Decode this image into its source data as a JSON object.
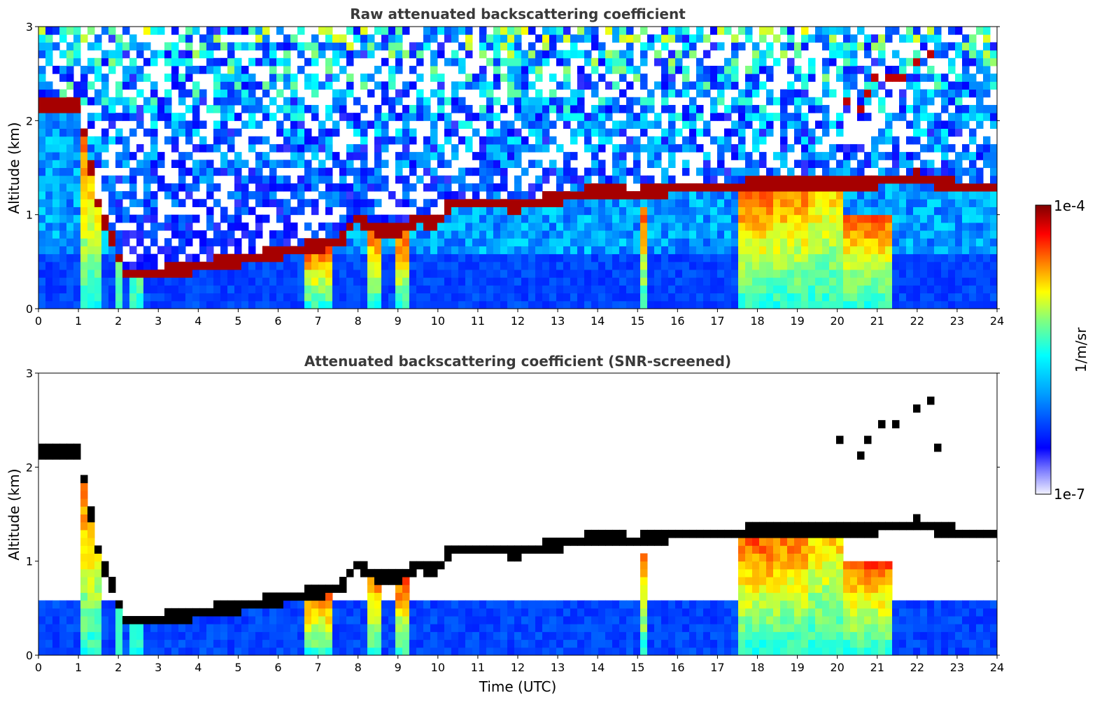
{
  "chart_data": [
    {
      "type": "heatmap",
      "title": "Raw attenuated backscattering coefficient",
      "xlabel": "",
      "ylabel": "Altitude (km)",
      "xlim": [
        0,
        24
      ],
      "ylim": [
        0,
        3
      ],
      "xticks": [
        "0",
        "1",
        "2",
        "3",
        "4",
        "5",
        "6",
        "7",
        "8",
        "9",
        "10",
        "11",
        "12",
        "13",
        "14",
        "15",
        "16",
        "17",
        "18",
        "19",
        "20",
        "21",
        "22",
        "23",
        "24"
      ],
      "yticks": [
        "0",
        "1",
        "2",
        "3"
      ],
      "features": {
        "cloud_base_km": [
          [
            0,
            2.15
          ],
          [
            1,
            2.15
          ],
          [
            1.5,
            1.1
          ],
          [
            2.2,
            0.35
          ],
          [
            3,
            0.38
          ],
          [
            4,
            0.45
          ],
          [
            5,
            0.52
          ],
          [
            6,
            0.6
          ],
          [
            7,
            0.68
          ],
          [
            7.5,
            0.7
          ],
          [
            8,
            0.98
          ],
          [
            8.5,
            0.82
          ],
          [
            9,
            0.82
          ],
          [
            9.5,
            0.95
          ],
          [
            10,
            0.92
          ],
          [
            10.3,
            1.12
          ],
          [
            11,
            1.12
          ],
          [
            12,
            1.1
          ],
          [
            13,
            1.18
          ],
          [
            14,
            1.25
          ],
          [
            15,
            1.22
          ],
          [
            16,
            1.28
          ],
          [
            17,
            1.3
          ],
          [
            18,
            1.32
          ],
          [
            19,
            1.35
          ],
          [
            20,
            1.35
          ],
          [
            21,
            1.35
          ],
          [
            22,
            1.4
          ],
          [
            23,
            1.3
          ],
          [
            24,
            1.28
          ]
        ],
        "high_cloud_km": [
          [
            20,
            2.35
          ],
          [
            20.5,
            2.05
          ],
          [
            21,
            2.5
          ],
          [
            21.5,
            2.4
          ],
          [
            22,
            2.65
          ],
          [
            22.3,
            2.8
          ],
          [
            22.5,
            2.2
          ]
        ],
        "screened_out_noise": false
      }
    },
    {
      "type": "heatmap",
      "title": "Attenuated backscattering coefficient (SNR-screened)",
      "xlabel": "Time (UTC)",
      "ylabel": "Altitude (km)",
      "xlim": [
        0,
        24
      ],
      "ylim": [
        0,
        3
      ],
      "xticks": [
        "0",
        "1",
        "2",
        "3",
        "4",
        "5",
        "6",
        "7",
        "8",
        "9",
        "10",
        "11",
        "12",
        "13",
        "14",
        "15",
        "16",
        "17",
        "18",
        "19",
        "20",
        "21",
        "22",
        "23",
        "24"
      ],
      "yticks": [
        "0",
        "1",
        "2",
        "3"
      ],
      "features": {
        "cloud_base_km": [
          [
            0,
            2.15
          ],
          [
            1,
            2.15
          ],
          [
            1.5,
            1.1
          ],
          [
            2.2,
            0.35
          ],
          [
            3,
            0.38
          ],
          [
            4,
            0.45
          ],
          [
            5,
            0.52
          ],
          [
            6,
            0.6
          ],
          [
            7,
            0.68
          ],
          [
            7.5,
            0.7
          ],
          [
            8,
            0.98
          ],
          [
            8.5,
            0.82
          ],
          [
            9,
            0.82
          ],
          [
            9.5,
            0.95
          ],
          [
            10,
            0.92
          ],
          [
            10.3,
            1.12
          ],
          [
            11,
            1.12
          ],
          [
            12,
            1.1
          ],
          [
            13,
            1.18
          ],
          [
            14,
            1.25
          ],
          [
            15,
            1.22
          ],
          [
            16,
            1.28
          ],
          [
            17,
            1.3
          ],
          [
            18,
            1.32
          ],
          [
            19,
            1.35
          ],
          [
            20,
            1.35
          ],
          [
            21,
            1.35
          ],
          [
            22,
            1.4
          ],
          [
            23,
            1.3
          ],
          [
            24,
            1.28
          ]
        ],
        "high_cloud_km": [
          [
            20,
            2.35
          ],
          [
            20.5,
            2.05
          ],
          [
            21,
            2.5
          ],
          [
            21.5,
            2.4
          ],
          [
            22,
            2.65
          ],
          [
            22.3,
            2.8
          ],
          [
            22.5,
            2.2
          ]
        ],
        "screened_out_noise": true
      }
    }
  ],
  "colorbar": {
    "label": "1/m/sr",
    "max_label": "1e-4",
    "min_label": "1e-7",
    "scale": "log",
    "colormap": [
      "#f2f2ff",
      "#0000ff",
      "#00a0ff",
      "#00ffff",
      "#80ff80",
      "#ffff00",
      "#ff8000",
      "#ff0000",
      "#800000"
    ]
  }
}
